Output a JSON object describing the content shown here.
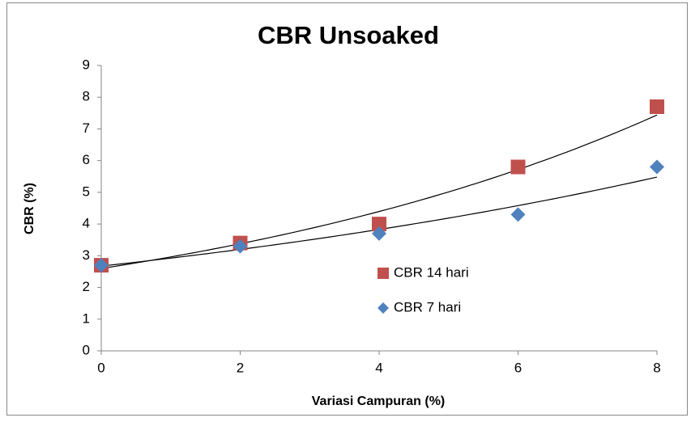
{
  "chart_data": {
    "type": "scatter",
    "title": "CBR Unsoaked",
    "x_label": "Variasi Campuran (%)",
    "y_label": "CBR (%)",
    "x": [
      0,
      2,
      4,
      6,
      8
    ],
    "series": [
      {
        "name": "CBR 14 hari",
        "color": "#c0504d",
        "marker": "square",
        "values": [
          2.7,
          3.4,
          4.0,
          5.8,
          7.7
        ]
      },
      {
        "name": "CBR 7 hari",
        "color": "#4f81bd",
        "marker": "diamond",
        "values": [
          2.7,
          3.3,
          3.7,
          4.3,
          5.8
        ]
      }
    ],
    "xlim": [
      0,
      8
    ],
    "xticks": [
      0,
      2,
      4,
      6,
      8
    ],
    "ylim": [
      0,
      9
    ],
    "yticks": [
      0,
      1,
      2,
      3,
      4,
      5,
      6,
      7,
      8,
      9
    ],
    "grid": false,
    "trendline": "exponential",
    "trendline_color": "#000000"
  }
}
